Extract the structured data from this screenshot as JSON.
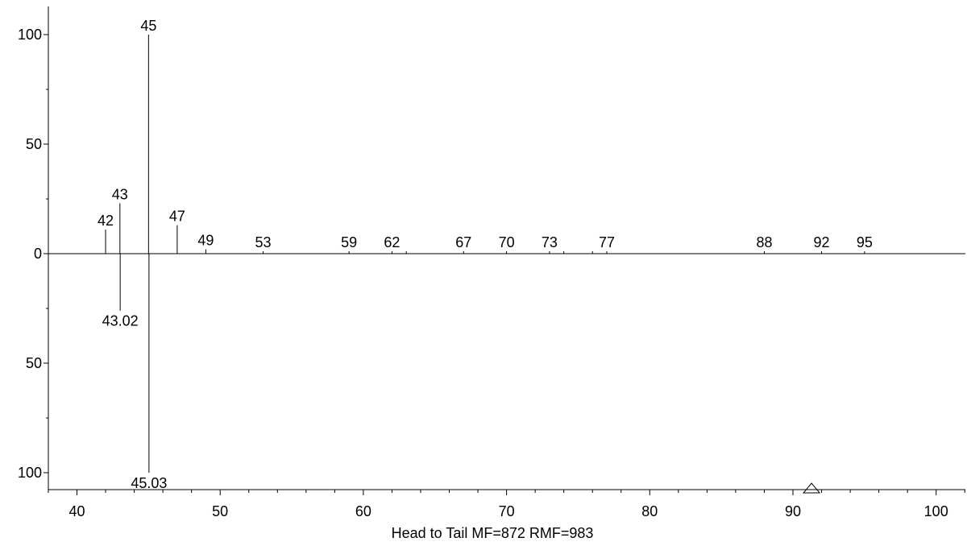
{
  "chart_data": {
    "type": "bar",
    "title": "",
    "xlabel": "Head to Tail MF=872 RMF=983",
    "ylabel": "",
    "xlim": [
      38,
      102
    ],
    "ylim": [
      -100,
      100
    ],
    "x_ticks": [
      "40",
      "50",
      "60",
      "70",
      "80",
      "90",
      "100"
    ],
    "y_ticks": [
      {
        "value": 100,
        "label": "100"
      },
      {
        "value": 50,
        "label": "50"
      },
      {
        "value": 0,
        "label": "0"
      },
      {
        "value": -50,
        "label": "50"
      },
      {
        "value": -100,
        "label": "100"
      }
    ],
    "grid": false,
    "series": [
      {
        "name": "",
        "orientation": "head",
        "peaks": [
          {
            "x": 42,
            "y": 11,
            "label": "42"
          },
          {
            "x": 43,
            "y": 23,
            "label": "43"
          },
          {
            "x": 45,
            "y": 100,
            "label": "45"
          },
          {
            "x": 47,
            "y": 13,
            "label": "47"
          },
          {
            "x": 49,
            "y": 2,
            "label": "49"
          },
          {
            "x": 53,
            "y": 1,
            "label": "53"
          },
          {
            "x": 59,
            "y": 0.5,
            "label": "59"
          },
          {
            "x": 62,
            "y": 0.5,
            "label": "62"
          },
          {
            "x": 63,
            "y": 0.5,
            "label": ""
          },
          {
            "x": 67,
            "y": 0.5,
            "label": "67"
          },
          {
            "x": 70,
            "y": 0.5,
            "label": "70"
          },
          {
            "x": 73,
            "y": 0.5,
            "label": "73"
          },
          {
            "x": 74,
            "y": 0.5,
            "label": ""
          },
          {
            "x": 76,
            "y": 0.5,
            "label": ""
          },
          {
            "x": 77,
            "y": 0.5,
            "label": "77"
          },
          {
            "x": 88,
            "y": 0.5,
            "label": "88"
          },
          {
            "x": 92,
            "y": 0.5,
            "label": "92"
          },
          {
            "x": 95,
            "y": 0.5,
            "label": "95"
          }
        ]
      },
      {
        "name": "",
        "orientation": "tail",
        "peaks": [
          {
            "x": 43.02,
            "y": -26,
            "label": "43.02"
          },
          {
            "x": 45.03,
            "y": -100,
            "label": "45.03"
          }
        ]
      }
    ],
    "markers": [
      {
        "shape": "triangle",
        "x": 91.3
      }
    ]
  }
}
